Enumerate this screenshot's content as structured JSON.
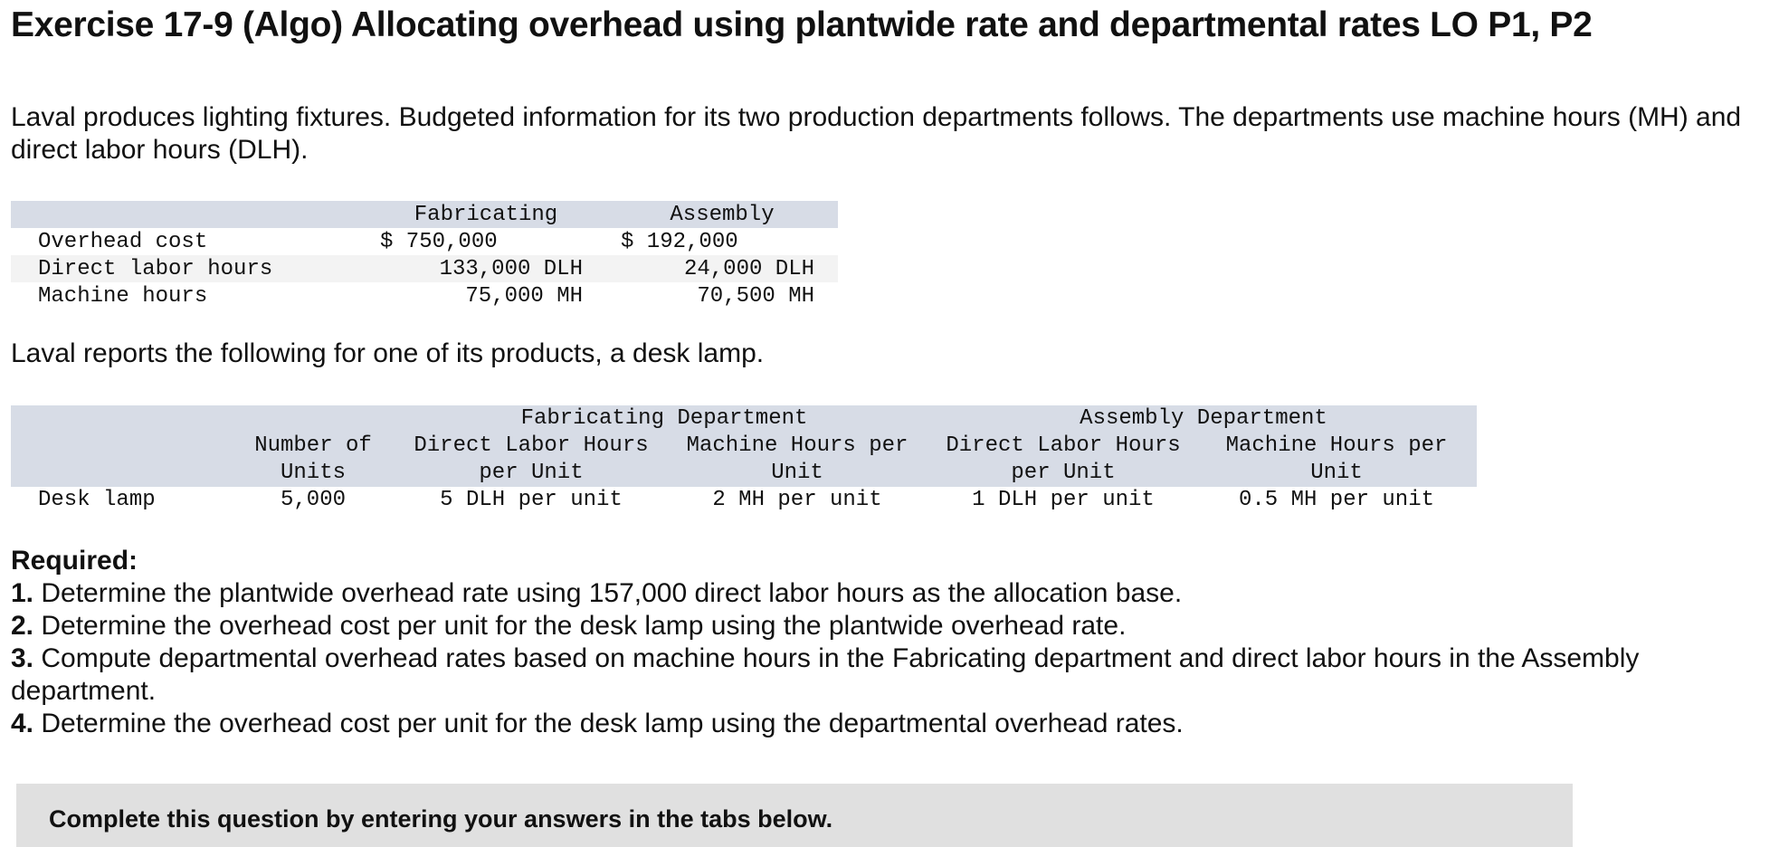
{
  "title": "Exercise 17-9 (Algo) Allocating overhead using plantwide rate and departmental rates LO P1, P2",
  "intro": "Laval produces lighting fixtures. Budgeted information for its two production departments follows. The departments use machine hours (MH) and direct labor hours (DLH).",
  "budget_table": {
    "headers": [
      "",
      "Fabricating",
      "Assembly"
    ],
    "rows": [
      {
        "label": "Overhead cost",
        "fabricating": "$ 750,000",
        "assembly": "$ 192,000"
      },
      {
        "label": "Direct labor hours",
        "fabricating": "133,000 DLH",
        "assembly": "24,000 DLH"
      },
      {
        "label": "Machine hours",
        "fabricating": "75,000 MH",
        "assembly": "70,500 MH"
      }
    ]
  },
  "para2": "Laval reports the following for one of its products, a desk lamp.",
  "product_table": {
    "group_headers": {
      "fabricating": "Fabricating Department",
      "assembly": "Assembly Department"
    },
    "col_headers": {
      "units": [
        "Number of",
        "Units"
      ],
      "fab_dlh": [
        "Direct Labor Hours",
        "per Unit"
      ],
      "fab_mh": [
        "Machine Hours per",
        "Unit"
      ],
      "asm_dlh": [
        "Direct Labor Hours",
        "per Unit"
      ],
      "asm_mh": [
        "Machine Hours per",
        "Unit"
      ]
    },
    "row": {
      "label": "Desk lamp",
      "units": "5,000",
      "fab_dlh": "5 DLH per unit",
      "fab_mh": "2 MH per unit",
      "asm_dlh": "1 DLH per unit",
      "asm_mh": "0.5 MH per unit"
    }
  },
  "required": {
    "label": "Required:",
    "items": [
      {
        "num": "1.",
        "text": "Determine the plantwide overhead rate using 157,000 direct labor hours as the allocation base."
      },
      {
        "num": "2.",
        "text": "Determine the overhead cost per unit for the desk lamp using the plantwide overhead rate."
      },
      {
        "num": "3.",
        "text": "Compute departmental overhead rates based on machine hours in the Fabricating department and direct labor hours in the Assembly department."
      },
      {
        "num": "4.",
        "text": "Determine the overhead cost per unit for the desk lamp using the departmental overhead rates."
      }
    ]
  },
  "notice": "Complete this question by entering your answers in the tabs below."
}
